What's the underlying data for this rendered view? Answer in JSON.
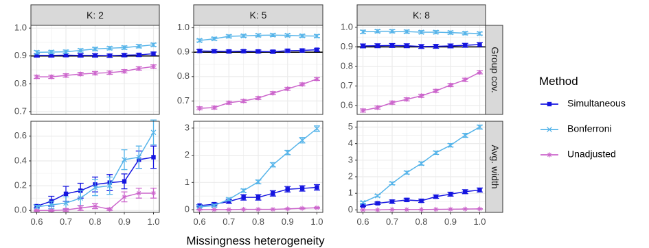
{
  "chart_data": {
    "type": "line",
    "xlabel": "Missingness heterogeneity",
    "x": [
      0.6,
      0.65,
      0.7,
      0.75,
      0.8,
      0.85,
      0.9,
      0.95,
      1.0
    ],
    "x_ticks": [
      "0.6",
      "0.7",
      "0.8",
      "0.9",
      "1.0"
    ],
    "facet_cols": [
      "K: 2",
      "K: 5",
      "K: 8"
    ],
    "facet_rows": [
      "Group cov.",
      "Avg. width"
    ],
    "legend": {
      "title": "Method",
      "placement": "right",
      "entries": [
        "Simultaneous",
        "Bonferroni",
        "Unadjusted"
      ]
    },
    "colors": {
      "Simultaneous": "#1515e0",
      "Bonferroni": "#56b4e9",
      "Unadjusted": "#cc66cc",
      "panel_border": "#333333",
      "strip_fill": "#d9d9d9",
      "grid": "#ebebeb"
    },
    "grid": true,
    "panels": [
      {
        "col": 0,
        "row": 0,
        "ylim": [
          0.69,
          1.01
        ],
        "yticks": [
          "0.7",
          "0.8",
          "0.9",
          "1.0"
        ],
        "hline": 0.9,
        "series": [
          {
            "name": "Simultaneous",
            "y": [
              0.902,
              0.902,
              0.903,
              0.902,
              0.902,
              0.901,
              0.903,
              0.904,
              0.908
            ],
            "err": [
              0.006,
              0.006,
              0.006,
              0.006,
              0.006,
              0.006,
              0.006,
              0.006,
              0.006
            ]
          },
          {
            "name": "Bonferroni",
            "y": [
              0.913,
              0.914,
              0.915,
              0.92,
              0.925,
              0.928,
              0.93,
              0.935,
              0.94
            ],
            "err": [
              0.006,
              0.006,
              0.006,
              0.006,
              0.006,
              0.006,
              0.006,
              0.006,
              0.006
            ]
          },
          {
            "name": "Unadjusted",
            "y": [
              0.825,
              0.825,
              0.83,
              0.835,
              0.838,
              0.84,
              0.845,
              0.855,
              0.862
            ],
            "err": [
              0.006,
              0.006,
              0.006,
              0.006,
              0.006,
              0.006,
              0.006,
              0.006,
              0.006
            ]
          }
        ]
      },
      {
        "col": 1,
        "row": 0,
        "ylim": [
          0.645,
          1.01
        ],
        "yticks": [
          "0.7",
          "0.8",
          "0.9",
          "1.0"
        ],
        "hline": 0.9,
        "series": [
          {
            "name": "Simultaneous",
            "y": [
              0.905,
              0.904,
              0.903,
              0.904,
              0.903,
              0.902,
              0.906,
              0.907,
              0.91
            ],
            "err": [
              0.006,
              0.006,
              0.006,
              0.006,
              0.006,
              0.006,
              0.006,
              0.006,
              0.006
            ]
          },
          {
            "name": "Bonferroni",
            "y": [
              0.948,
              0.955,
              0.965,
              0.967,
              0.969,
              0.97,
              0.969,
              0.967,
              0.966
            ],
            "err": [
              0.006,
              0.006,
              0.006,
              0.006,
              0.006,
              0.006,
              0.006,
              0.006,
              0.006
            ]
          },
          {
            "name": "Unadjusted",
            "y": [
              0.67,
              0.673,
              0.693,
              0.7,
              0.712,
              0.732,
              0.75,
              0.768,
              0.79
            ],
            "err": [
              0.006,
              0.006,
              0.006,
              0.006,
              0.006,
              0.006,
              0.006,
              0.006,
              0.006
            ]
          }
        ]
      },
      {
        "col": 2,
        "row": 0,
        "ylim": [
          0.555,
          1.01
        ],
        "yticks": [
          "0.6",
          "0.7",
          "0.8",
          "0.9",
          "1.0"
        ],
        "hline": 0.9,
        "series": [
          {
            "name": "Simultaneous",
            "y": [
              0.905,
              0.906,
              0.907,
              0.906,
              0.902,
              0.903,
              0.905,
              0.908,
              0.912
            ],
            "err": [
              0.01,
              0.01,
              0.01,
              0.01,
              0.01,
              0.01,
              0.01,
              0.01,
              0.01
            ]
          },
          {
            "name": "Bonferroni",
            "y": [
              0.977,
              0.98,
              0.98,
              0.978,
              0.975,
              0.975,
              0.973,
              0.97,
              0.968
            ],
            "err": [
              0.008,
              0.008,
              0.008,
              0.008,
              0.008,
              0.008,
              0.008,
              0.008,
              0.008
            ]
          },
          {
            "name": "Unadjusted",
            "y": [
              0.575,
              0.59,
              0.615,
              0.632,
              0.65,
              0.675,
              0.705,
              0.732,
              0.77
            ],
            "err": [
              0.008,
              0.008,
              0.008,
              0.008,
              0.008,
              0.008,
              0.008,
              0.008,
              0.008
            ]
          }
        ]
      },
      {
        "col": 0,
        "row": 1,
        "ylim": [
          -0.015,
          0.72
        ],
        "yticks": [
          "0.0",
          "0.2",
          "0.4",
          "0.6"
        ],
        "series": [
          {
            "name": "Simultaneous",
            "y": [
              0.035,
              0.075,
              0.135,
              0.16,
              0.21,
              0.225,
              0.235,
              0.41,
              0.43
            ],
            "err": [
              0.012,
              0.04,
              0.06,
              0.06,
              0.06,
              0.065,
              0.06,
              0.07,
              0.09
            ]
          },
          {
            "name": "Bonferroni",
            "y": [
              0.03,
              0.045,
              0.06,
              0.1,
              0.185,
              0.2,
              0.41,
              0.43,
              0.63
            ],
            "err": [
              0.012,
              0.03,
              0.05,
              0.06,
              0.065,
              0.07,
              0.08,
              0.09,
              0.1
            ]
          },
          {
            "name": "Unadjusted",
            "y": [
              0.0,
              0.0,
              0.005,
              0.02,
              0.035,
              0.01,
              0.11,
              0.14,
              0.14
            ],
            "err": [
              0.005,
              0.005,
              0.01,
              0.02,
              0.02,
              0.01,
              0.04,
              0.04,
              0.04
            ]
          }
        ]
      },
      {
        "col": 1,
        "row": 1,
        "ylim": [
          -0.1,
          3.25
        ],
        "yticks": [
          "0",
          "1",
          "2",
          "3"
        ],
        "series": [
          {
            "name": "Simultaneous",
            "y": [
              0.15,
              0.2,
              0.3,
              0.45,
              0.45,
              0.6,
              0.75,
              0.78,
              0.82
            ],
            "err": [
              0.03,
              0.05,
              0.07,
              0.1,
              0.1,
              0.1,
              0.1,
              0.1,
              0.1
            ]
          },
          {
            "name": "Bonferroni",
            "y": [
              0.1,
              0.15,
              0.38,
              0.7,
              1.02,
              1.65,
              2.1,
              2.55,
              2.98
            ],
            "err": [
              0.03,
              0.05,
              0.05,
              0.06,
              0.07,
              0.08,
              0.08,
              0.1,
              0.1
            ]
          },
          {
            "name": "Unadjusted",
            "y": [
              0.0,
              0.0,
              0.0,
              0.01,
              0.01,
              0.01,
              0.03,
              0.05,
              0.07
            ],
            "err": [
              0.01,
              0.01,
              0.01,
              0.01,
              0.01,
              0.01,
              0.01,
              0.02,
              0.02
            ]
          }
        ]
      },
      {
        "col": 2,
        "row": 1,
        "ylim": [
          -0.15,
          5.35
        ],
        "yticks": [
          "0",
          "1",
          "2",
          "3",
          "4",
          "5"
        ],
        "series": [
          {
            "name": "Simultaneous",
            "y": [
              0.25,
              0.4,
              0.5,
              0.6,
              0.55,
              0.8,
              0.95,
              1.1,
              1.2
            ],
            "err": [
              0.05,
              0.07,
              0.1,
              0.1,
              0.1,
              0.1,
              0.12,
              0.12,
              0.12
            ]
          },
          {
            "name": "Bonferroni",
            "y": [
              0.45,
              0.85,
              1.6,
              2.25,
              2.8,
              3.45,
              3.9,
              4.5,
              5.0
            ],
            "err": [
              0.05,
              0.07,
              0.08,
              0.09,
              0.1,
              0.1,
              0.1,
              0.12,
              0.12
            ]
          },
          {
            "name": "Unadjusted",
            "y": [
              0.0,
              0.0,
              0.02,
              0.02,
              0.02,
              0.03,
              0.04,
              0.05,
              0.06
            ],
            "err": [
              0.01,
              0.01,
              0.01,
              0.01,
              0.01,
              0.01,
              0.01,
              0.01,
              0.01
            ]
          }
        ]
      }
    ]
  }
}
